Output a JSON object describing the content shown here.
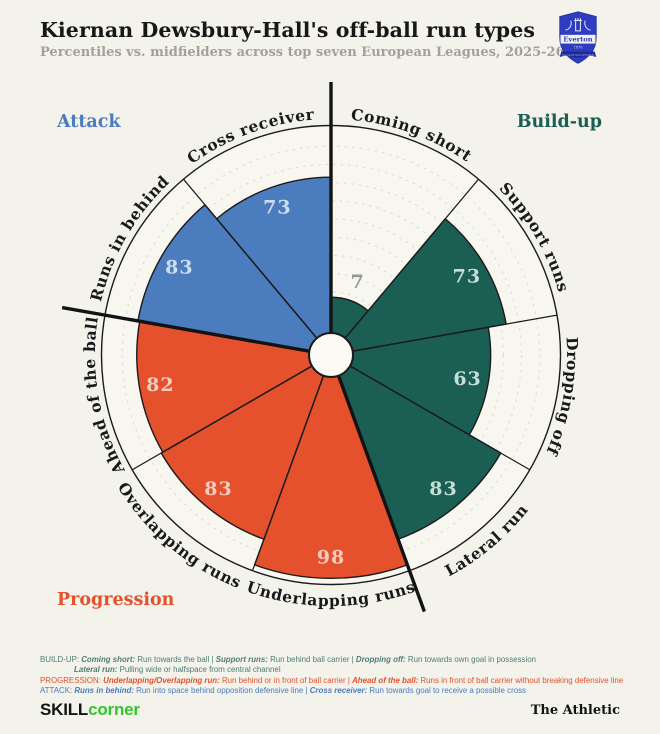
{
  "header": {
    "title": "Kiernan Dewsbury-Hall's off-ball run types",
    "subtitle": "Percentiles vs. midfielders across top seven European Leagues, 2025-26",
    "badge": {
      "club": "Everton",
      "founded": "1878",
      "motto": "NIL SATIS NISI OPTIMUM"
    }
  },
  "region_labels": {
    "attack": "Attack",
    "buildup": "Build-up",
    "progression": "Progression"
  },
  "chart_data": {
    "type": "radial-bar",
    "title": "Kiernan Dewsbury-Hall's off-ball run types",
    "units": "percentile",
    "range": [
      0,
      100
    ],
    "grid": {
      "show": true,
      "step": 10,
      "style": "dashed"
    },
    "low_value_color": "#8f948e",
    "groups": {
      "Build-up": {
        "color": "#1b5e53",
        "value_color": "#cfe5df"
      },
      "Progression": {
        "color": "#e4512c",
        "value_color": "#f6d2c6"
      },
      "Attack": {
        "color": "#4b7cbd",
        "value_color": "#d4e2f3"
      }
    },
    "segments": [
      {
        "label": "Coming short",
        "group": "Build-up",
        "value": 7
      },
      {
        "label": "Support runs",
        "group": "Build-up",
        "value": 73
      },
      {
        "label": "Dropping off",
        "group": "Build-up",
        "value": 63
      },
      {
        "label": "Lateral run",
        "group": "Build-up",
        "value": 83
      },
      {
        "label": "Underlapping runs",
        "group": "Progression",
        "value": 98
      },
      {
        "label": "Overlapping runs",
        "group": "Progression",
        "value": 83
      },
      {
        "label": "Ahead of the ball",
        "group": "Progression",
        "value": 82
      },
      {
        "label": "Runs in behind",
        "group": "Attack",
        "value": 83
      },
      {
        "label": "Cross receiver",
        "group": "Attack",
        "value": 73
      }
    ]
  },
  "legend": {
    "lines": [
      {
        "color": "#4f7e76",
        "indent": false,
        "runs": [
          {
            "t": "BUILD-UP: "
          },
          {
            "t": "Coming short:",
            "b": true
          },
          {
            "t": " Run towards the ball | "
          },
          {
            "t": "Support runs:",
            "b": true
          },
          {
            "t": " Run behind ball carrier | "
          },
          {
            "t": "Dropping off:",
            "b": true
          },
          {
            "t": " Run towards own goal in possession"
          }
        ]
      },
      {
        "color": "#4f7e76",
        "indent": true,
        "runs": [
          {
            "t": "Lateral run:",
            "b": true
          },
          {
            "t": " Pulling wide or halfspace from central channel"
          }
        ]
      },
      {
        "color": "#e4512c",
        "indent": false,
        "runs": [
          {
            "t": "PROGRESSION: "
          },
          {
            "t": "Underlapping/Overlapping run:",
            "b": true
          },
          {
            "t": " Run behind or in front of ball carrier | "
          },
          {
            "t": "Ahead of the ball:",
            "b": true
          },
          {
            "t": " Runs in front of ball carrier without breaking defensive line"
          }
        ]
      },
      {
        "color": "#4b7cbd",
        "indent": false,
        "runs": [
          {
            "t": "ATTACK: "
          },
          {
            "t": "Runs in behind:",
            "b": true
          },
          {
            "t": " Run into space behind opposition defensive line | "
          },
          {
            "t": "Cross receiver:",
            "b": true
          },
          {
            "t": " Run towards goal to receive a possible cross"
          }
        ]
      }
    ]
  },
  "branding": {
    "skill": "SKILL",
    "corner": "corner",
    "partner": "The Athletic"
  }
}
